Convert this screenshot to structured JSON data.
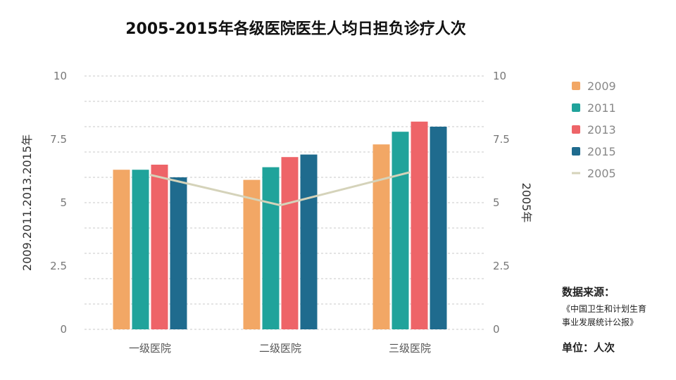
{
  "chart_data": {
    "type": "bar",
    "title": "2005-2015年各级医院医生人均日担负诊疗人次",
    "categories": [
      "一级医院",
      "二级医院",
      "三级医院"
    ],
    "series": [
      {
        "name": "2009",
        "values": [
          6.3,
          5.9,
          7.3
        ],
        "color": "#F2A765"
      },
      {
        "name": "2011",
        "values": [
          6.3,
          6.4,
          7.8
        ],
        "color": "#20A39B"
      },
      {
        "name": "2013",
        "values": [
          6.5,
          6.8,
          8.2
        ],
        "color": "#EE6468"
      },
      {
        "name": "2015",
        "values": [
          6.0,
          6.9,
          8.0
        ],
        "color": "#1F6B8E"
      }
    ],
    "line_series": {
      "name": "2005",
      "values": [
        6.1,
        4.9,
        6.2
      ],
      "color": "#D5D3BA",
      "axis": "right"
    },
    "ylabel_left": "2009.2011.2013.2015年",
    "ylabel_right": "2005年",
    "ylim": [
      0,
      10
    ],
    "yticks": [
      "0",
      "2.5",
      "5",
      "7.5",
      "10"
    ],
    "grid": true,
    "legend_position": "right"
  },
  "source": {
    "heading": "数据来源：",
    "line1": "《中国卫生和计划生育",
    "line2": "事业发展统计公报》"
  },
  "unit": "单位：人次"
}
